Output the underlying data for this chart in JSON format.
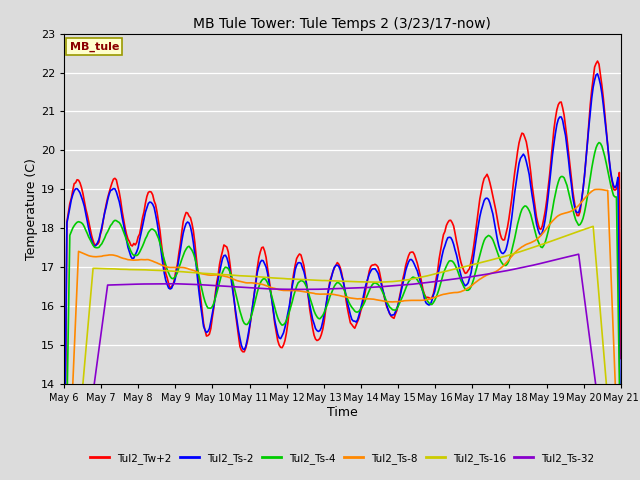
{
  "title": "MB Tule Tower: Tule Temps 2 (3/23/17-now)",
  "xlabel": "Time",
  "ylabel": "Temperature (C)",
  "ylim": [
    14.0,
    23.0
  ],
  "yticks": [
    14.0,
    15.0,
    16.0,
    17.0,
    18.0,
    19.0,
    20.0,
    21.0,
    22.0,
    23.0
  ],
  "bg_color": "#dcdcdc",
  "station_label": "MB_tule",
  "station_label_color": "#8b0000",
  "station_box_facecolor": "#ffffcc",
  "station_box_edgecolor": "#999900",
  "series_colors": {
    "Tul2_Tw+2": "#ff0000",
    "Tul2_Ts-2": "#0000ff",
    "Tul2_Ts-4": "#00cc00",
    "Tul2_Ts-8": "#ff8800",
    "Tul2_Ts-16": "#cccc00",
    "Tul2_Ts-32": "#8800cc"
  },
  "line_width": 1.2,
  "xtick_labels": [
    "May 6",
    "May 7",
    "May 8",
    "May 9",
    "May 10",
    "May 11",
    "May 12",
    "May 13",
    "May 14",
    "May 15",
    "May 16",
    "May 17",
    "May 18",
    "May 19",
    "May 20",
    "May 21"
  ]
}
